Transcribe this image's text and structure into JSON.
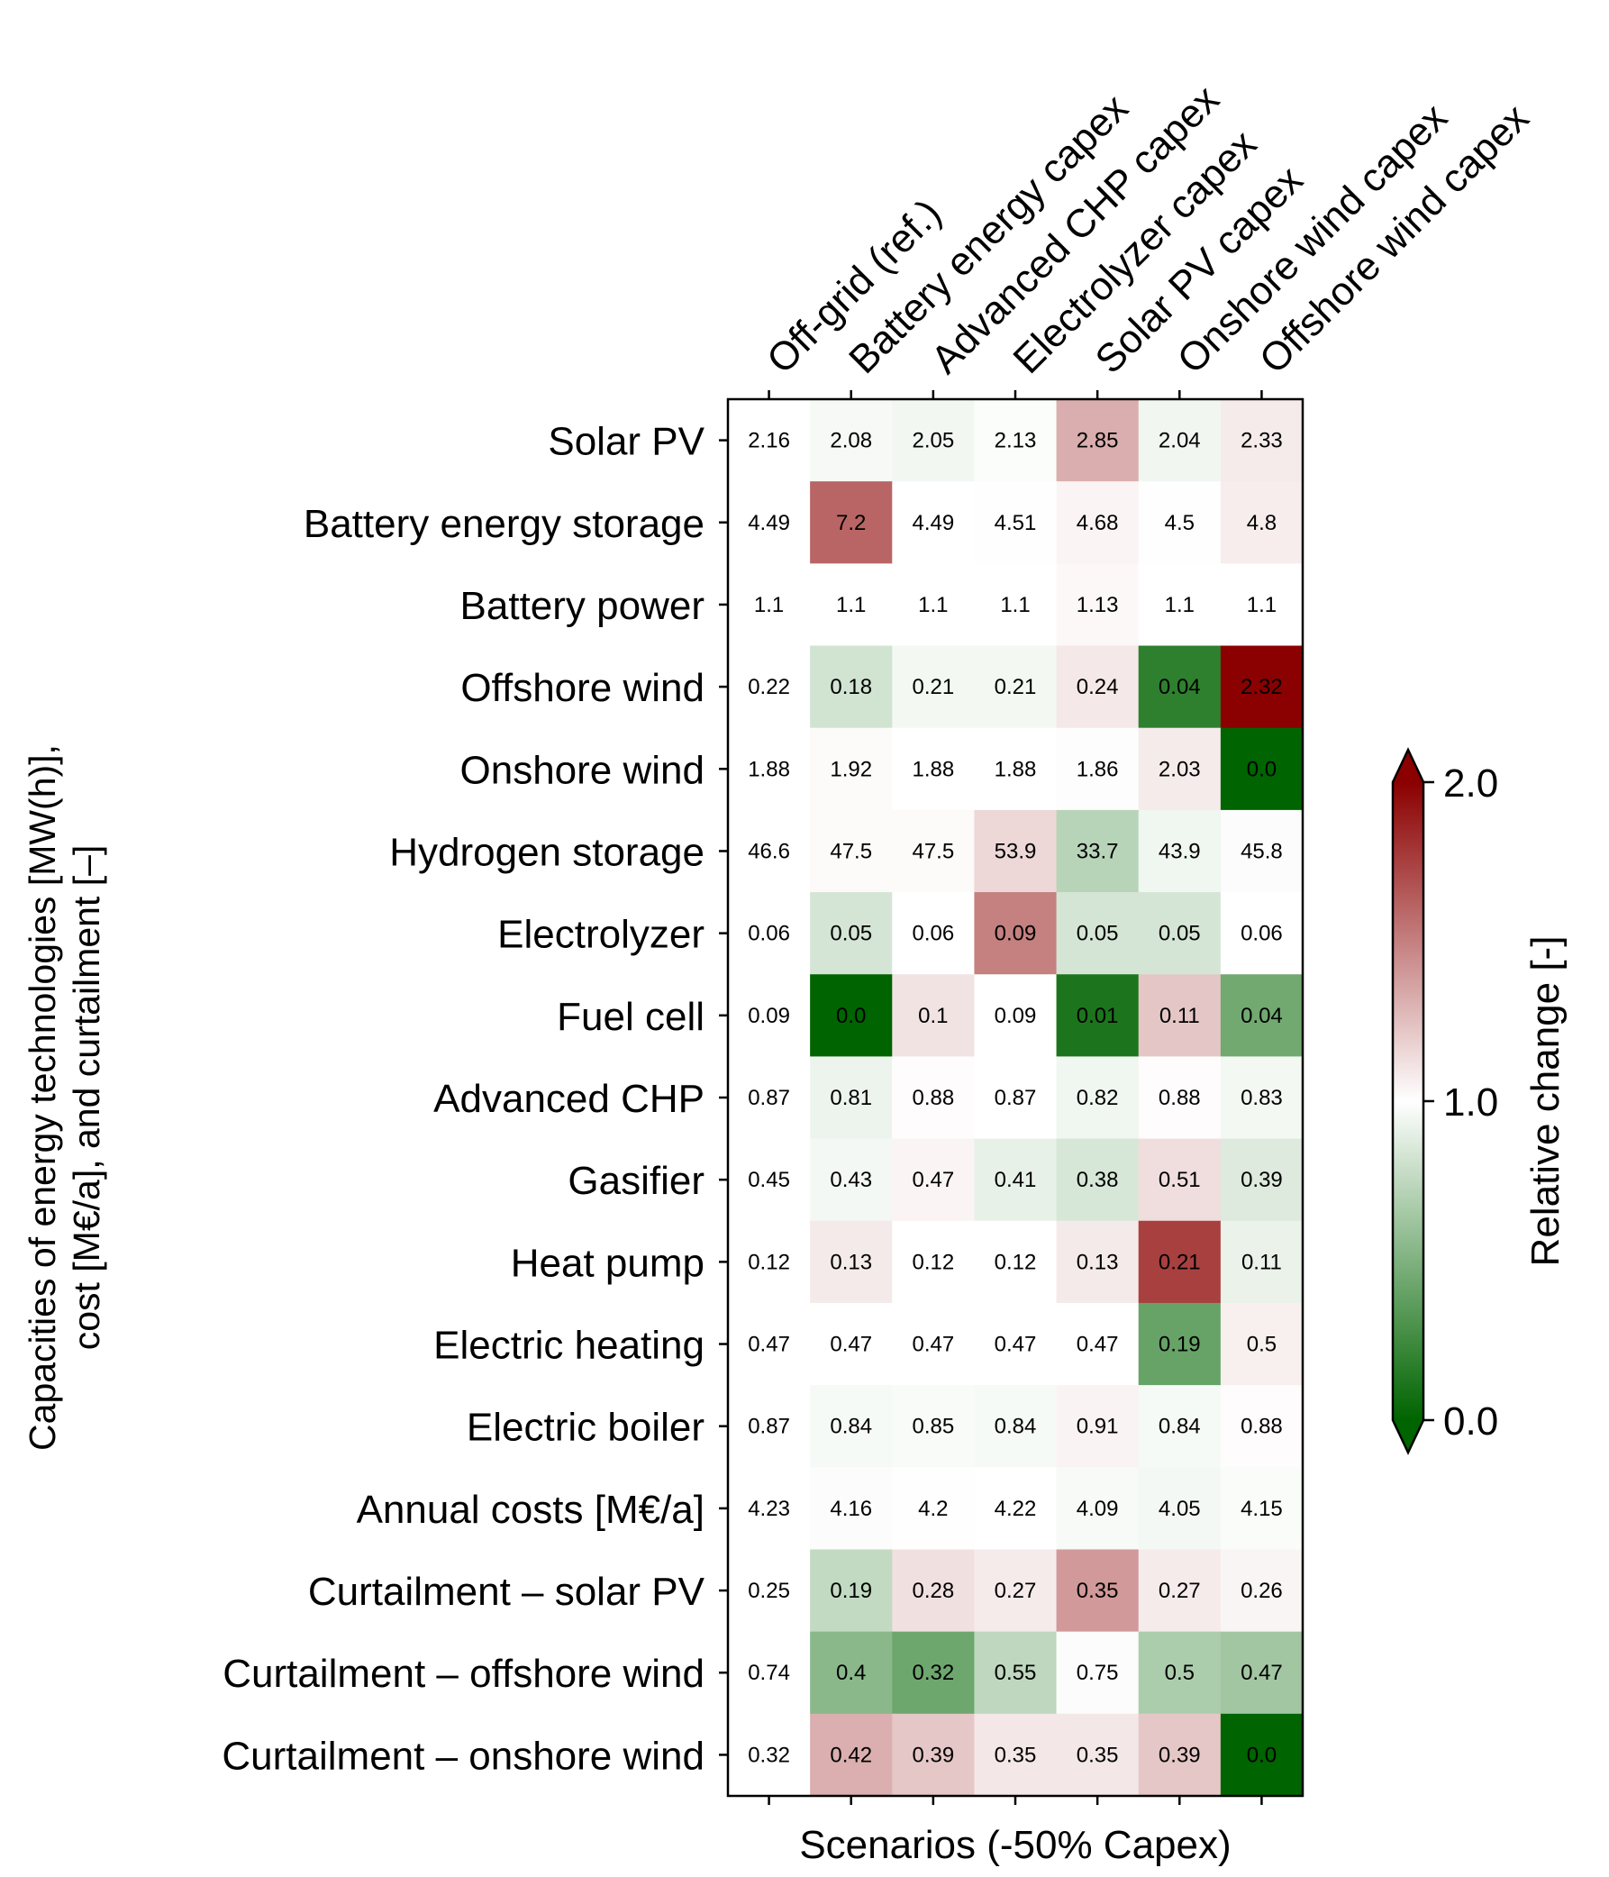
{
  "chart_data": {
    "type": "heatmap",
    "xlabel": "Scenarios (-50% Capex)",
    "ylabel_lines": [
      "Capacities of energy technologies [MW(h)],",
      "cost [M€/a], and curtailment [–]"
    ],
    "columns": [
      "Off-grid (ref.)",
      "Battery energy capex",
      "Advanced CHP capex",
      "Electrolyzer capex",
      "Solar PV capex",
      "Onshore wind capex",
      "Offshore wind capex"
    ],
    "rows": [
      "Solar PV",
      "Battery energy storage",
      "Battery power",
      "Offshore wind",
      "Onshore wind",
      "Hydrogen storage",
      "Electrolyzer",
      "Fuel cell",
      "Advanced CHP",
      "Gasifier",
      "Heat pump",
      "Electric heating",
      "Electric boiler",
      "Annual costs [M€/a]",
      "Curtailment – solar PV",
      "Curtailment – offshore wind",
      "Curtailment – onshore wind"
    ],
    "cell_labels": [
      [
        "2.16",
        "2.08",
        "2.05",
        "2.13",
        "2.85",
        "2.04",
        "2.33"
      ],
      [
        "4.49",
        "7.2",
        "4.49",
        "4.51",
        "4.68",
        "4.5",
        "4.8"
      ],
      [
        "1.1",
        "1.1",
        "1.1",
        "1.1",
        "1.13",
        "1.1",
        "1.1"
      ],
      [
        "0.22",
        "0.18",
        "0.21",
        "0.21",
        "0.24",
        "0.04",
        "2.32"
      ],
      [
        "1.88",
        "1.92",
        "1.88",
        "1.88",
        "1.86",
        "2.03",
        "0.0"
      ],
      [
        "46.6",
        "47.5",
        "47.5",
        "53.9",
        "33.7",
        "43.9",
        "45.8"
      ],
      [
        "0.06",
        "0.05",
        "0.06",
        "0.09",
        "0.05",
        "0.05",
        "0.06"
      ],
      [
        "0.09",
        "0.0",
        "0.1",
        "0.09",
        "0.01",
        "0.11",
        "0.04"
      ],
      [
        "0.87",
        "0.81",
        "0.88",
        "0.87",
        "0.82",
        "0.88",
        "0.83"
      ],
      [
        "0.45",
        "0.43",
        "0.47",
        "0.41",
        "0.38",
        "0.51",
        "0.39"
      ],
      [
        "0.12",
        "0.13",
        "0.12",
        "0.12",
        "0.13",
        "0.21",
        "0.11"
      ],
      [
        "0.47",
        "0.47",
        "0.47",
        "0.47",
        "0.47",
        "0.19",
        "0.5"
      ],
      [
        "0.87",
        "0.84",
        "0.85",
        "0.84",
        "0.91",
        "0.84",
        "0.88"
      ],
      [
        "4.23",
        "4.16",
        "4.2",
        "4.22",
        "4.09",
        "4.05",
        "4.15"
      ],
      [
        "0.25",
        "0.19",
        "0.28",
        "0.27",
        "0.35",
        "0.27",
        "0.26"
      ],
      [
        "0.74",
        "0.4",
        "0.32",
        "0.55",
        "0.75",
        "0.5",
        "0.47"
      ],
      [
        "0.32",
        "0.42",
        "0.39",
        "0.35",
        "0.35",
        "0.39",
        "0.0"
      ]
    ],
    "colorbar": {
      "label": "Relative change [-]",
      "range": [
        0.0,
        2.0
      ],
      "ticks": [
        "0.0",
        "1.0",
        "2.0"
      ],
      "colors": [
        "#006400",
        "#ffffff",
        "#8b0000"
      ],
      "extend": "both"
    }
  }
}
